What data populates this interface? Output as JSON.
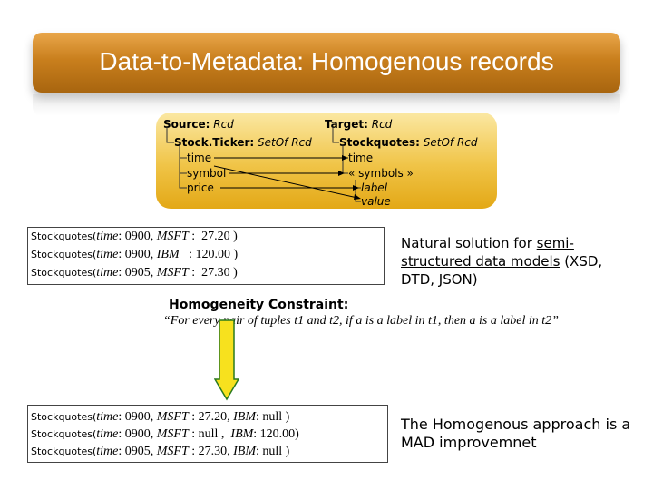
{
  "title": "Data-to-Metadata: Homogenous records",
  "source": {
    "label": "Source:",
    "type": "Rcd",
    "child_label": "Stock.Ticker:",
    "child_type": "SetOf Rcd",
    "fields": [
      "time",
      "symbol",
      "price"
    ]
  },
  "target": {
    "label": "Target:",
    "type": "Rcd",
    "child_label": "Stockquotes:",
    "child_type": "SetOf Rcd",
    "fields": [
      "time",
      "« symbols »",
      "label",
      "value"
    ]
  },
  "records_top": [
    {
      "name": "Stockquotes(",
      "field": "time",
      "rest_a": ": 0900, ",
      "sym": "MSFT",
      "rest_b": " :  27.20 )"
    },
    {
      "name": "Stockquotes(",
      "field": "time",
      "rest_a": ": 0900, ",
      "sym": "IBM",
      "rest_b": "   : 120.00 )"
    },
    {
      "name": "Stockquotes(",
      "field": "time",
      "rest_a": ": 0905, ",
      "sym": "MSFT",
      "rest_b": " :  27.30 )"
    }
  ],
  "note_top": {
    "line1_a": "Natural solution for ",
    "line1_b": "semi-",
    "line2_a": "structured data models",
    "line2_b": " (XSD,",
    "line3": "DTD, JSON)"
  },
  "constraint": {
    "heading": "Homogeneity Constraint:",
    "text": "“For every pair of tuples t1 and t2, if a is a label in t1, then a is a label in t2”"
  },
  "records_bottom": [
    {
      "name": "Stockquotes(",
      "field": "time",
      "rest_a": ": 0900, ",
      "sym1": "MSFT",
      "val1": " : 27.20, ",
      "sym2": "IBM",
      "val2": ": null )"
    },
    {
      "name": "Stockquotes(",
      "field": "time",
      "rest_a": ": 0900, ",
      "sym1": "MSFT",
      "val1": " : null ,  ",
      "sym2": "IBM",
      "val2": ": 120.00)"
    },
    {
      "name": "Stockquotes(",
      "field": "time",
      "rest_a": ": 0905, ",
      "sym1": "MSFT",
      "val1": " : 27.30, ",
      "sym2": "IBM",
      "val2": ": null )"
    }
  ],
  "note_bottom": {
    "line1": "The Homogenous approach is a",
    "line2": "MAD improvemnet"
  },
  "colors": {
    "title_bar": "#c97f1d",
    "schema_box": "#f0c447",
    "arrow_fill": "#f7e11e",
    "arrow_stroke": "#2a7a1f"
  }
}
